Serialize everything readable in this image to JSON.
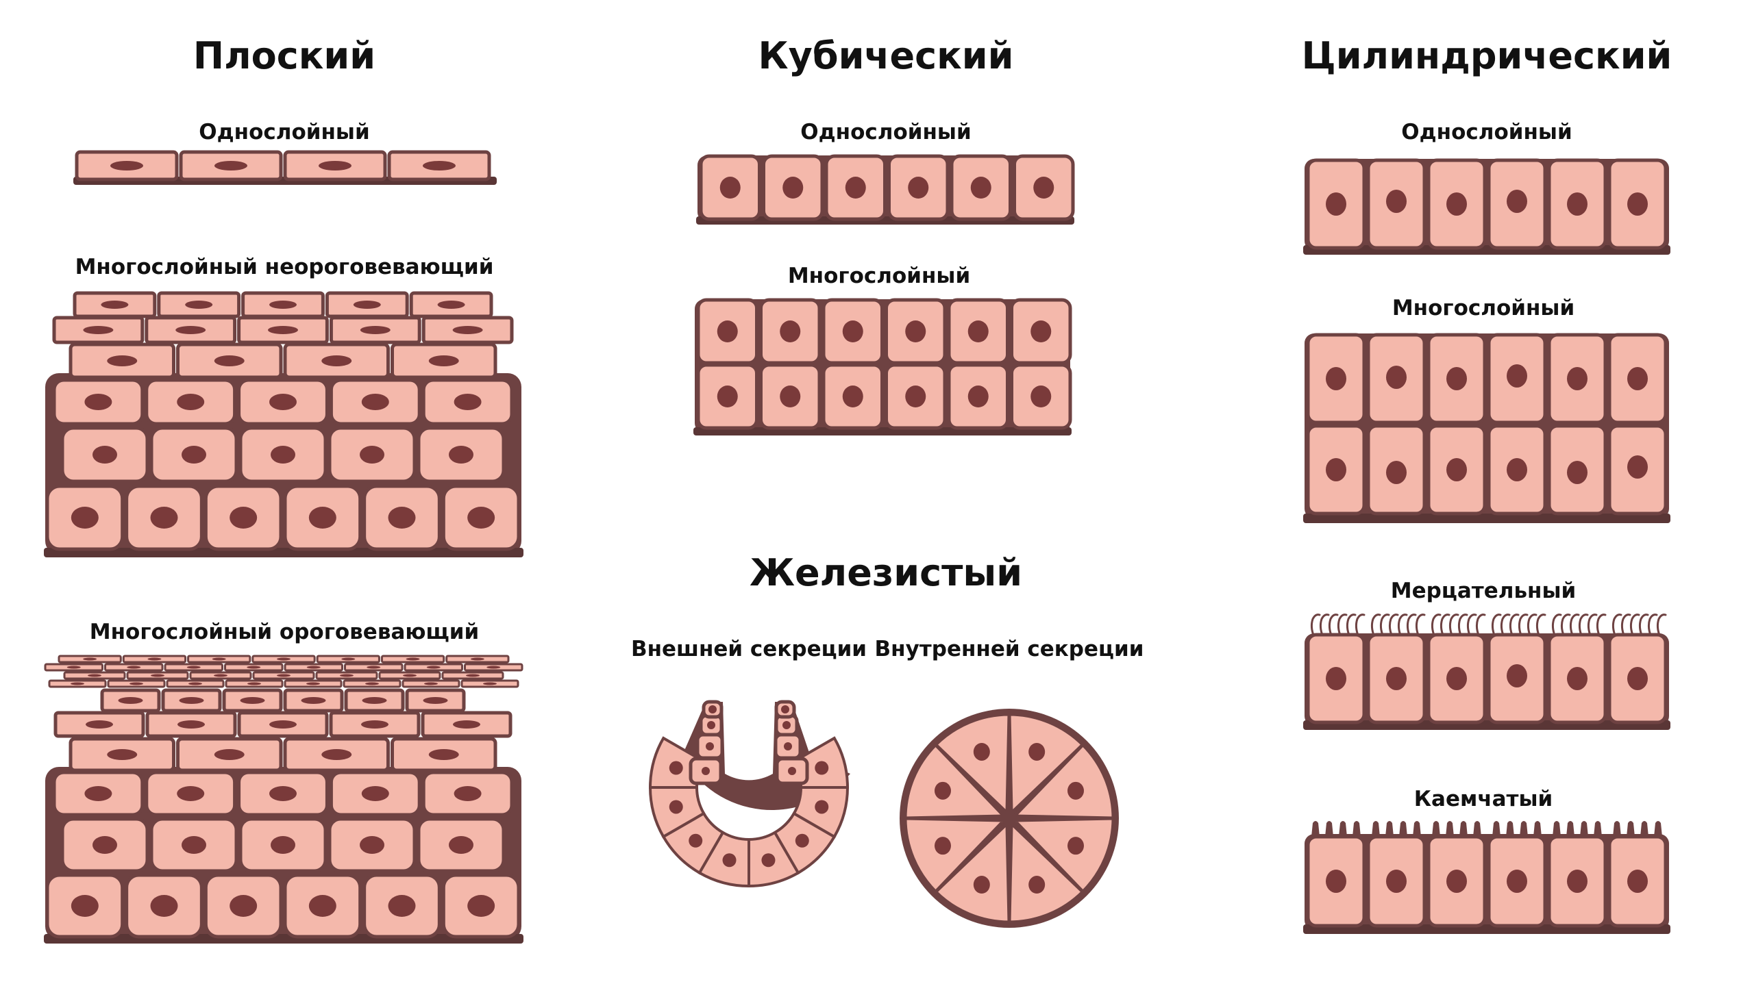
{
  "colors": {
    "cell_fill": "#f4b8ab",
    "membrane": "#6e4242",
    "nucleus": "#7a3a3a",
    "basement": "#5a3636",
    "background": "#ffffff",
    "text": "#111111"
  },
  "columns": {
    "squamous": {
      "title": "Плоский",
      "simple_label": "Однослойный",
      "stratified_nonkeratinized_label": "Многослойный неороговевающий",
      "stratified_keratinized_label": "Многослойный ороговевающий"
    },
    "cuboidal": {
      "title": "Кубический",
      "simple_label": "Однослойный",
      "stratified_label": "Многослойный"
    },
    "glandular": {
      "title": "Железистый",
      "exocrine_label": "Внешней секреции",
      "endocrine_label": "Внутренней секреции"
    },
    "columnar": {
      "title": "Цилиндрический",
      "simple_label": "Однослойный",
      "stratified_label": "Многослойный",
      "ciliated_label": "Мерцательный",
      "brush_border_label": "Каемчатый"
    }
  }
}
